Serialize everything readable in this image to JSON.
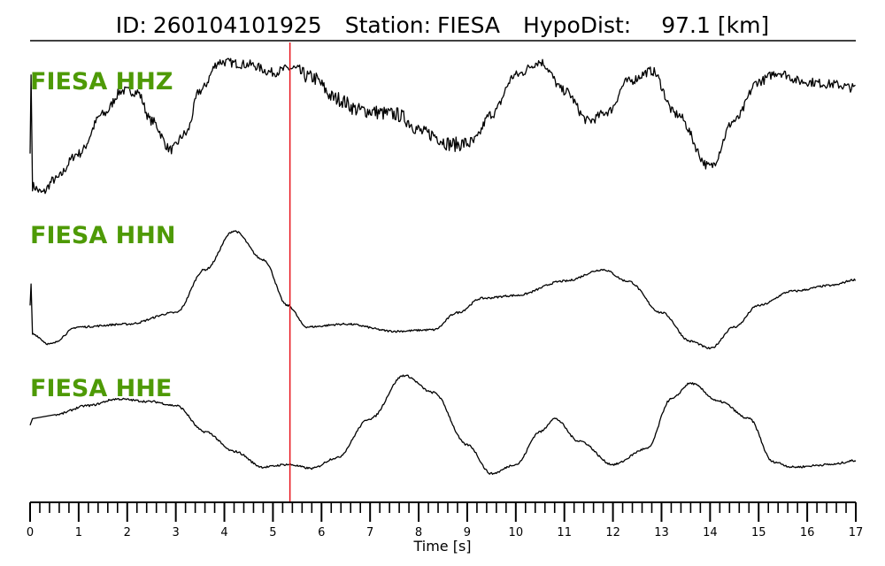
{
  "header": {
    "id_label": "ID:",
    "id_value": "260104101925",
    "station_label": "Station:",
    "station_value": "FIESA",
    "dist_label": "HypoDist:",
    "dist_value": "97.1 [km]"
  },
  "colors": {
    "trace": "#000000",
    "channel_label": "#4e9a06",
    "pick_line": "#e8141c",
    "axis": "#000000"
  },
  "chart_data": {
    "type": "line",
    "title": "ID: 260104101925   Station: FIESA   HypoDist:    97.1 [km]",
    "xlabel": "Time [s]",
    "xlim": [
      0,
      17
    ],
    "xticks": [
      0,
      1,
      2,
      3,
      4,
      5,
      6,
      7,
      8,
      9,
      10,
      11,
      12,
      13,
      14,
      15,
      16,
      17
    ],
    "minor_tick_step": 0.2,
    "pick_time": 5.35,
    "grid": false,
    "series": [
      {
        "name": "FIESA HHZ",
        "noise": 0.035,
        "points": [
          [
            0,
            0.3
          ],
          [
            0.02,
            0.9
          ],
          [
            0.05,
            0.05
          ],
          [
            0.25,
            0.0
          ],
          [
            0.5,
            0.1
          ],
          [
            1.0,
            0.3
          ],
          [
            1.5,
            0.6
          ],
          [
            1.9,
            0.78
          ],
          [
            2.2,
            0.77
          ],
          [
            2.5,
            0.55
          ],
          [
            2.9,
            0.33
          ],
          [
            3.2,
            0.45
          ],
          [
            3.5,
            0.78
          ],
          [
            3.9,
            1.0
          ],
          [
            4.5,
            0.98
          ],
          [
            5.0,
            0.92
          ],
          [
            5.35,
            0.95
          ],
          [
            5.8,
            0.88
          ],
          [
            6.3,
            0.72
          ],
          [
            6.8,
            0.63
          ],
          [
            7.5,
            0.6
          ],
          [
            8.2,
            0.45
          ],
          [
            8.7,
            0.37
          ],
          [
            9.1,
            0.38
          ],
          [
            9.5,
            0.6
          ],
          [
            10.0,
            0.9
          ],
          [
            10.5,
            1.0
          ],
          [
            11.0,
            0.78
          ],
          [
            11.5,
            0.55
          ],
          [
            11.9,
            0.62
          ],
          [
            12.3,
            0.85
          ],
          [
            12.8,
            0.93
          ],
          [
            13.3,
            0.6
          ],
          [
            14.0,
            0.2
          ],
          [
            14.5,
            0.55
          ],
          [
            15.0,
            0.85
          ],
          [
            15.4,
            0.92
          ],
          [
            15.9,
            0.85
          ],
          [
            16.5,
            0.83
          ],
          [
            17.0,
            0.8
          ]
        ]
      },
      {
        "name": "FIESA HHN",
        "noise": 0.007,
        "points": [
          [
            0,
            0.3
          ],
          [
            0.02,
            0.45
          ],
          [
            0.05,
            0.1
          ],
          [
            0.4,
            0.03
          ],
          [
            1.0,
            0.15
          ],
          [
            2.0,
            0.17
          ],
          [
            3.0,
            0.25
          ],
          [
            3.6,
            0.55
          ],
          [
            4.2,
            0.82
          ],
          [
            4.8,
            0.62
          ],
          [
            5.3,
            0.3
          ],
          [
            5.7,
            0.15
          ],
          [
            6.5,
            0.17
          ],
          [
            7.5,
            0.12
          ],
          [
            8.3,
            0.13
          ],
          [
            8.8,
            0.25
          ],
          [
            9.3,
            0.35
          ],
          [
            10.0,
            0.37
          ],
          [
            11.0,
            0.47
          ],
          [
            11.8,
            0.55
          ],
          [
            12.3,
            0.47
          ],
          [
            13.0,
            0.25
          ],
          [
            13.6,
            0.05
          ],
          [
            14.0,
            0.0
          ],
          [
            14.5,
            0.15
          ],
          [
            15.0,
            0.3
          ],
          [
            15.7,
            0.4
          ],
          [
            16.5,
            0.44
          ],
          [
            17.0,
            0.48
          ]
        ]
      },
      {
        "name": "FIESA HHE",
        "noise": 0.008,
        "points": [
          [
            0,
            0.4
          ],
          [
            0.05,
            0.45
          ],
          [
            0.5,
            0.48
          ],
          [
            1.2,
            0.55
          ],
          [
            1.8,
            0.6
          ],
          [
            2.5,
            0.58
          ],
          [
            3.0,
            0.55
          ],
          [
            3.6,
            0.35
          ],
          [
            4.2,
            0.2
          ],
          [
            4.8,
            0.08
          ],
          [
            5.3,
            0.1
          ],
          [
            5.8,
            0.07
          ],
          [
            6.3,
            0.15
          ],
          [
            7.0,
            0.45
          ],
          [
            7.7,
            0.78
          ],
          [
            8.3,
            0.65
          ],
          [
            9.0,
            0.25
          ],
          [
            9.5,
            0.03
          ],
          [
            10.0,
            0.1
          ],
          [
            10.5,
            0.35
          ],
          [
            10.8,
            0.45
          ],
          [
            11.3,
            0.28
          ],
          [
            12.0,
            0.1
          ],
          [
            12.7,
            0.22
          ],
          [
            13.2,
            0.6
          ],
          [
            13.6,
            0.72
          ],
          [
            14.2,
            0.58
          ],
          [
            14.8,
            0.45
          ],
          [
            15.3,
            0.12
          ],
          [
            15.7,
            0.08
          ],
          [
            16.5,
            0.1
          ],
          [
            17.0,
            0.13
          ]
        ]
      }
    ]
  }
}
